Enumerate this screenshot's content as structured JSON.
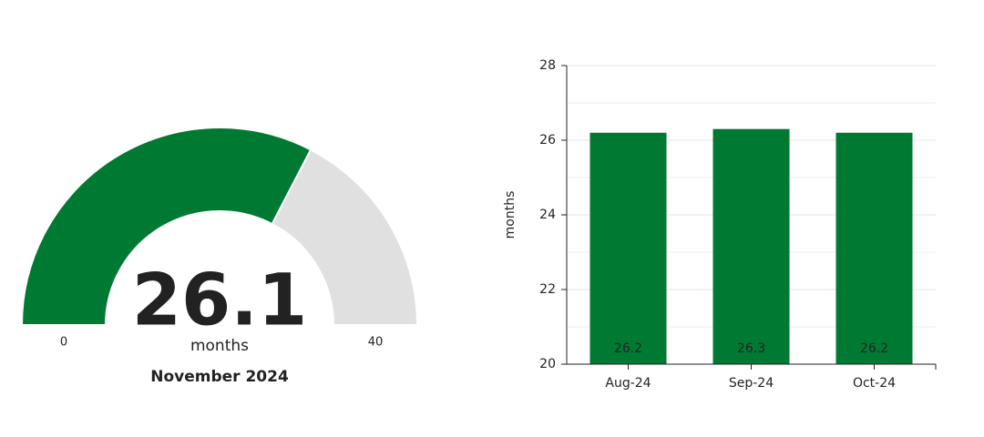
{
  "chart_data": [
    {
      "type": "gauge",
      "value": 26.1,
      "unit": "months",
      "subtitle": "November 2024",
      "range": [
        0,
        40
      ],
      "ticks": [
        0,
        40
      ],
      "color": "#007a33",
      "track_color": "#e0e0e0"
    },
    {
      "type": "bar",
      "categories": [
        "Aug-24",
        "Sep-24",
        "Oct-24"
      ],
      "values": [
        26.2,
        26.3,
        26.2
      ],
      "color": "#007a33",
      "ylabel": "months",
      "ylim": [
        20,
        28
      ],
      "yticks": [
        20,
        22,
        24,
        26,
        28
      ],
      "minor_yticks": [
        21,
        23,
        25,
        27
      ],
      "grid": true
    }
  ]
}
